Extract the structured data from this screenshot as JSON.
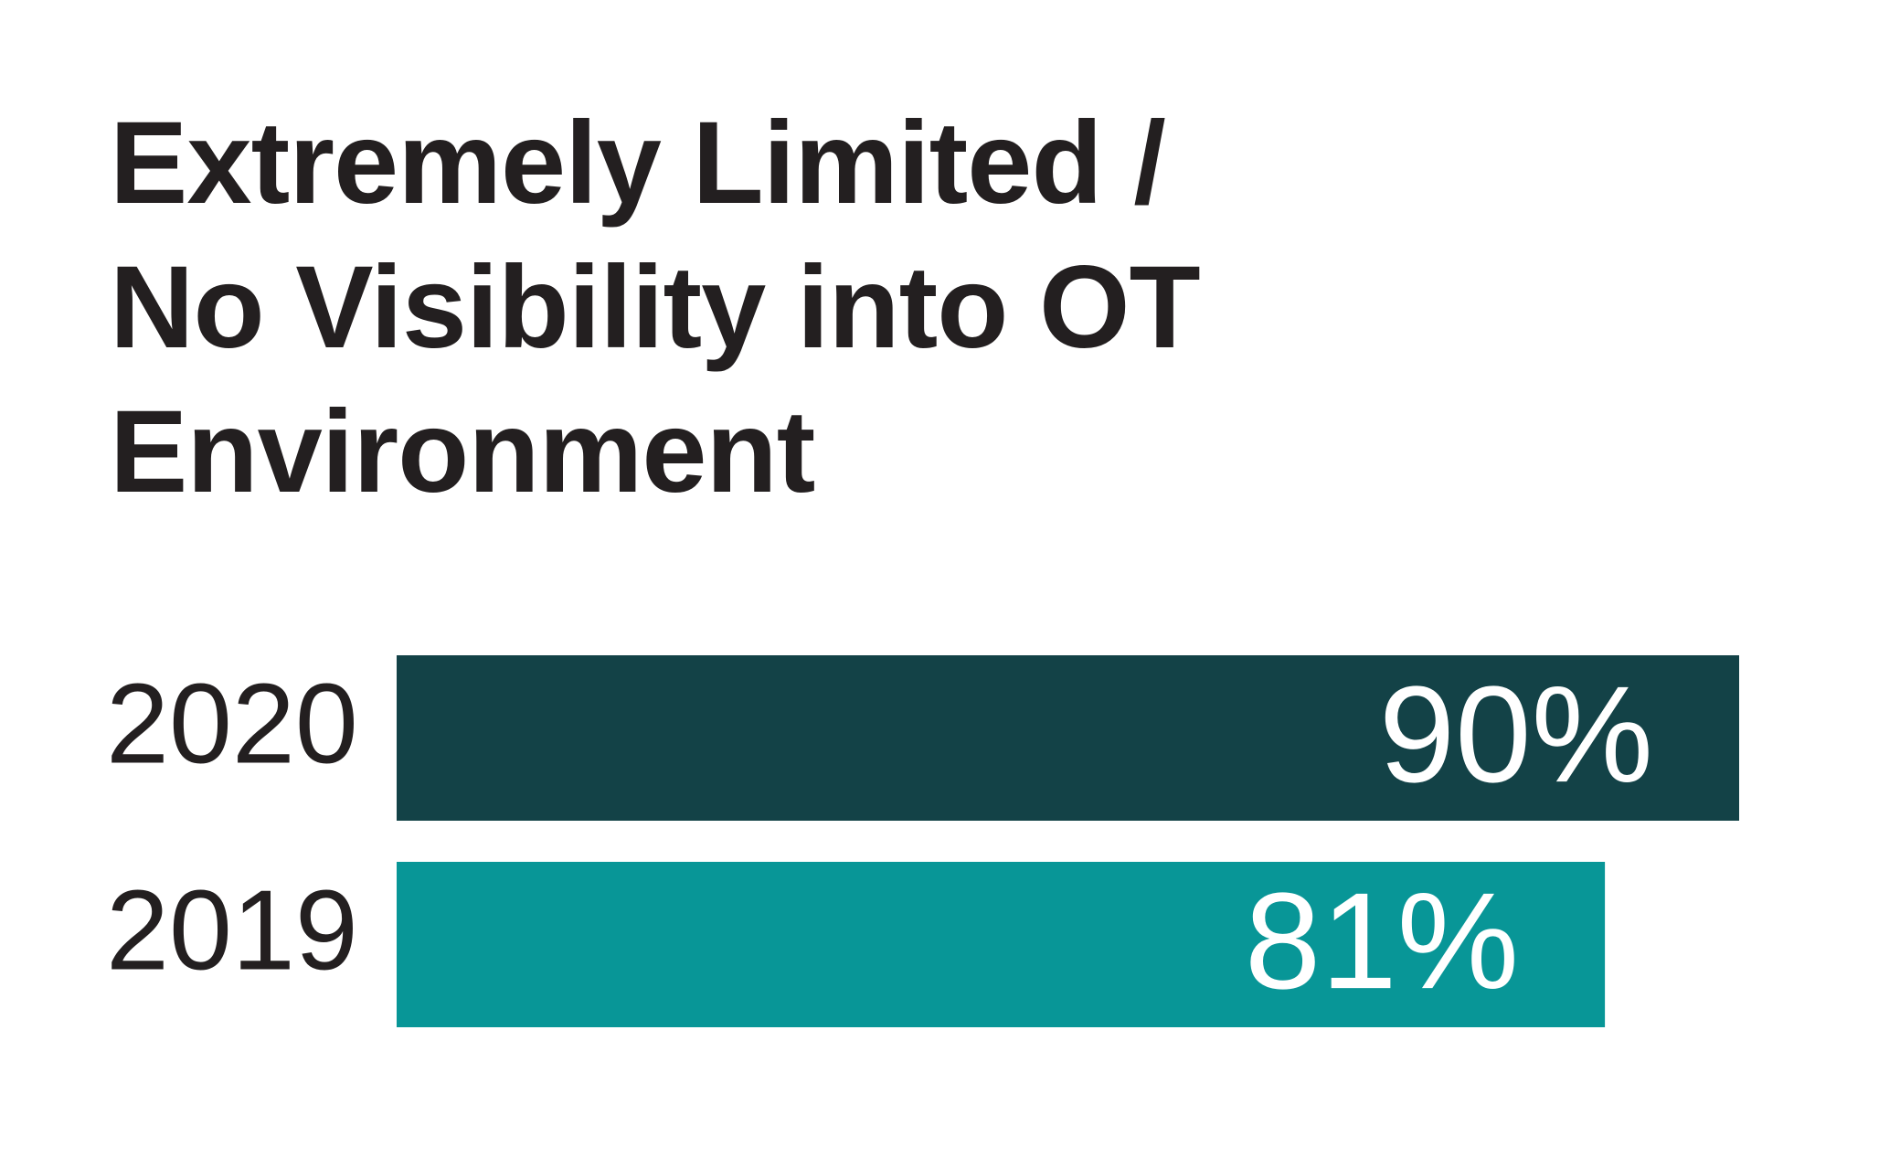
{
  "chart_data": {
    "type": "bar",
    "orientation": "horizontal",
    "title": "Extremely Limited / No Visibility into OT Environment",
    "categories": [
      "2020",
      "2019"
    ],
    "values": [
      90,
      81
    ],
    "value_labels": [
      "90%",
      "81%"
    ],
    "colors": [
      "#134247",
      "#089697"
    ]
  }
}
